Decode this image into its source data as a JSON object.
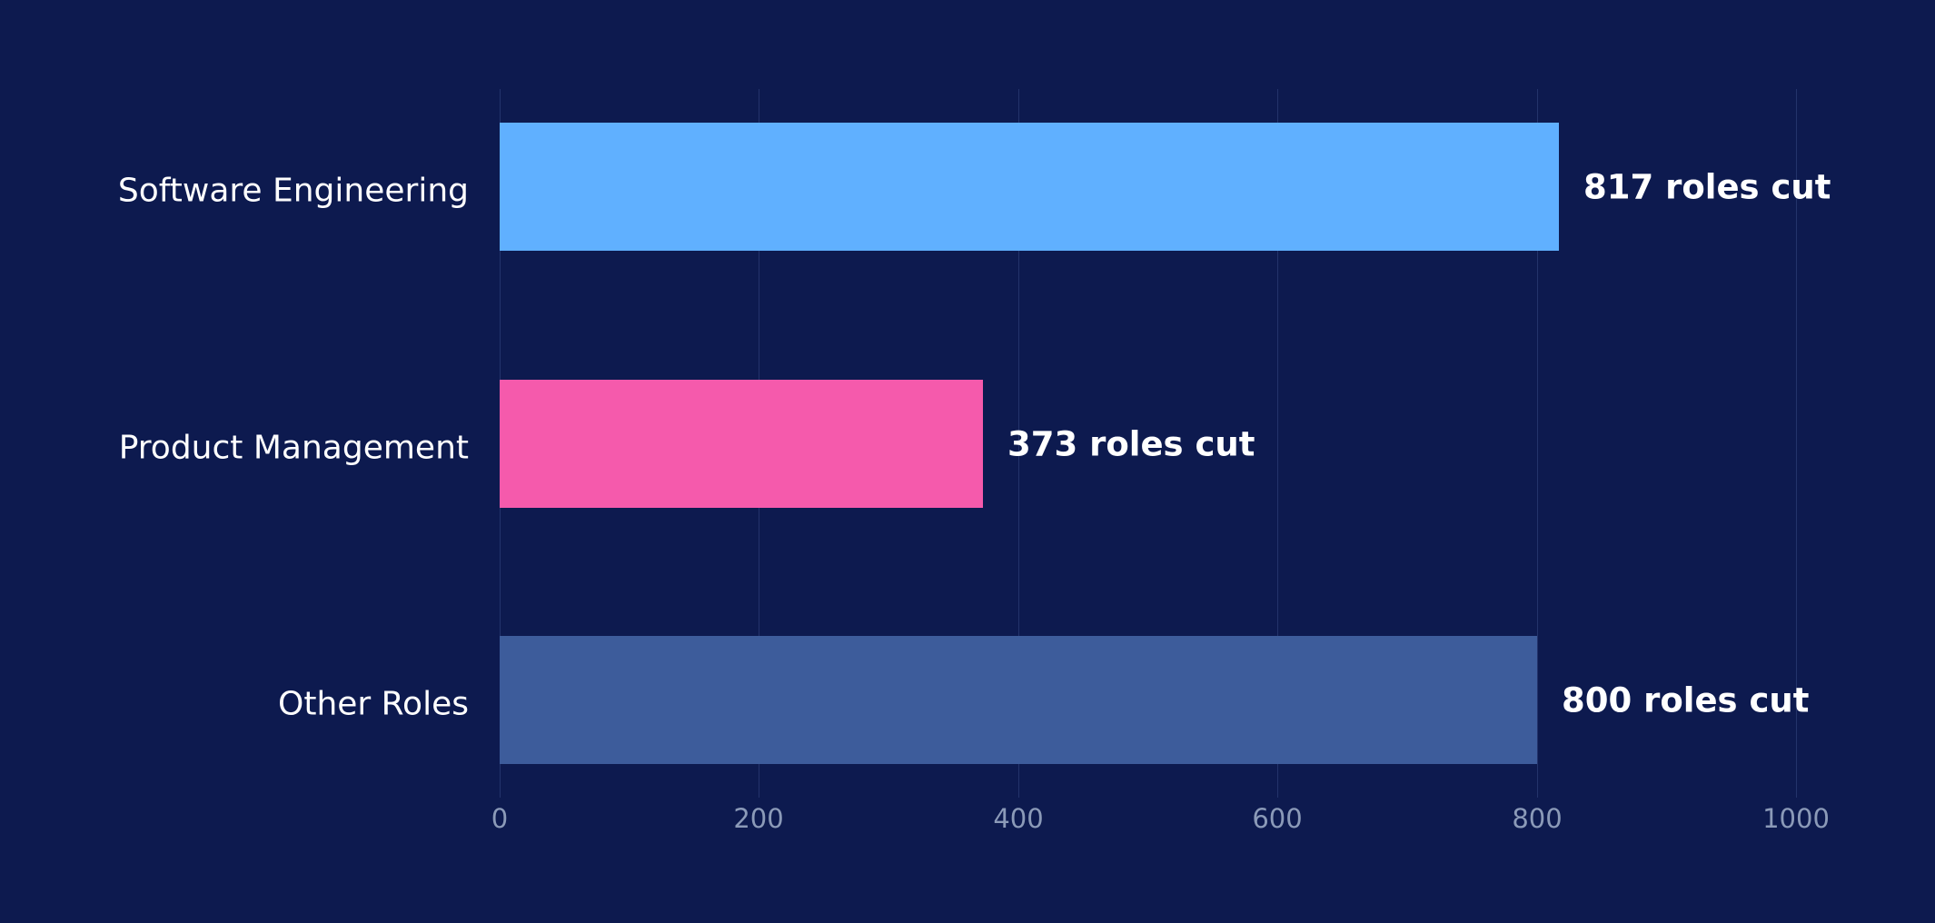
{
  "chart_data": {
    "type": "bar",
    "orientation": "horizontal",
    "title": "",
    "xlabel": "",
    "ylabel": "",
    "categories": [
      "Software Engineering",
      "Product Management",
      "Other Roles"
    ],
    "values": [
      817,
      373,
      800
    ],
    "value_labels": [
      "817 roles cut",
      "373 roles cut",
      "800 roles cut"
    ],
    "colors": [
      "#60b0ff",
      "#f55aac",
      "#3d5c9b"
    ],
    "xlim": [
      0,
      1000
    ],
    "xticks": [
      0,
      200,
      400,
      600,
      800,
      1000
    ],
    "xtick_labels": [
      "0",
      "200",
      "400",
      "600",
      "800",
      "1000"
    ],
    "grid": "vertical",
    "legend": "none"
  },
  "theme": {
    "background": "#0d1a4f",
    "grid_color": "#23336b",
    "tick_color": "#8b9ab8",
    "text_color": "#ffffff"
  }
}
